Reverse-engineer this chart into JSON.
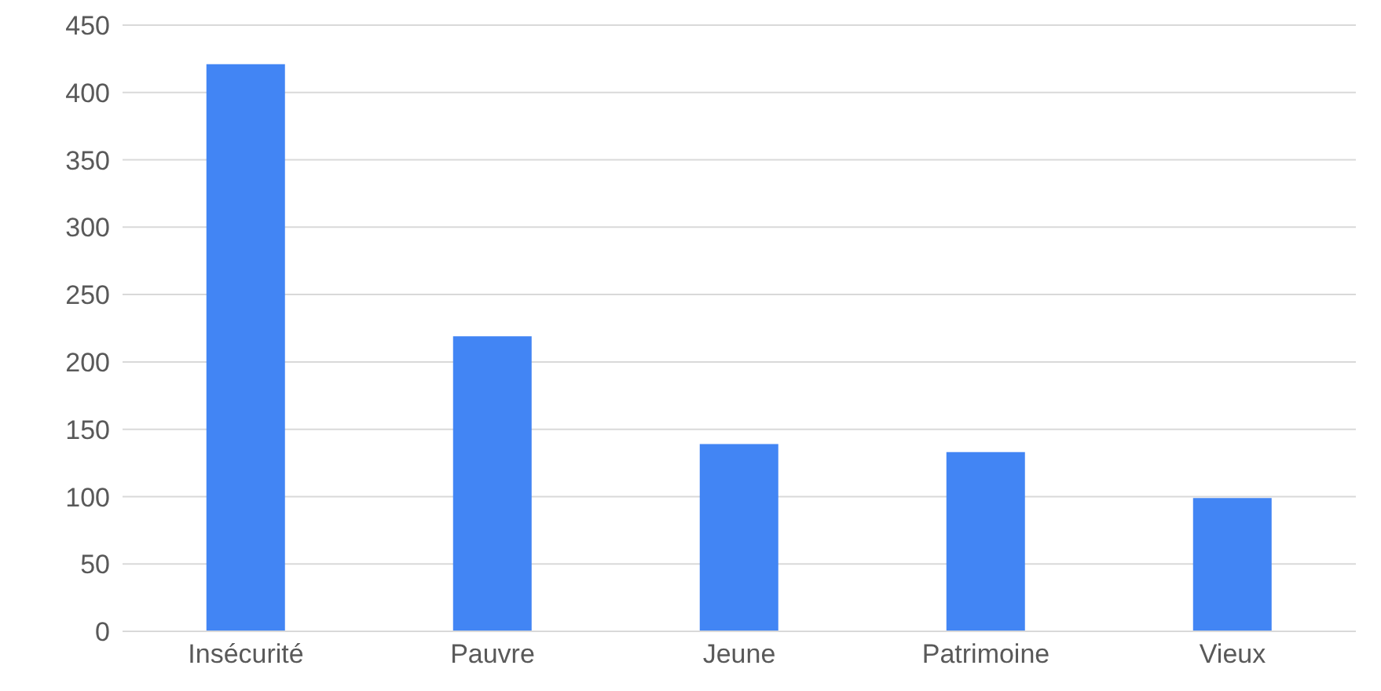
{
  "chart_data": {
    "type": "bar",
    "categories": [
      "Insécurité",
      "Pauvre",
      "Jeune",
      "Patrimoine",
      "Vieux"
    ],
    "values": [
      421,
      219,
      139,
      133,
      99
    ],
    "color": "#4285f4",
    "ylim": [
      0,
      450
    ],
    "yticks": [
      0,
      50,
      100,
      150,
      200,
      250,
      300,
      350,
      400,
      450
    ],
    "grid": "y"
  }
}
